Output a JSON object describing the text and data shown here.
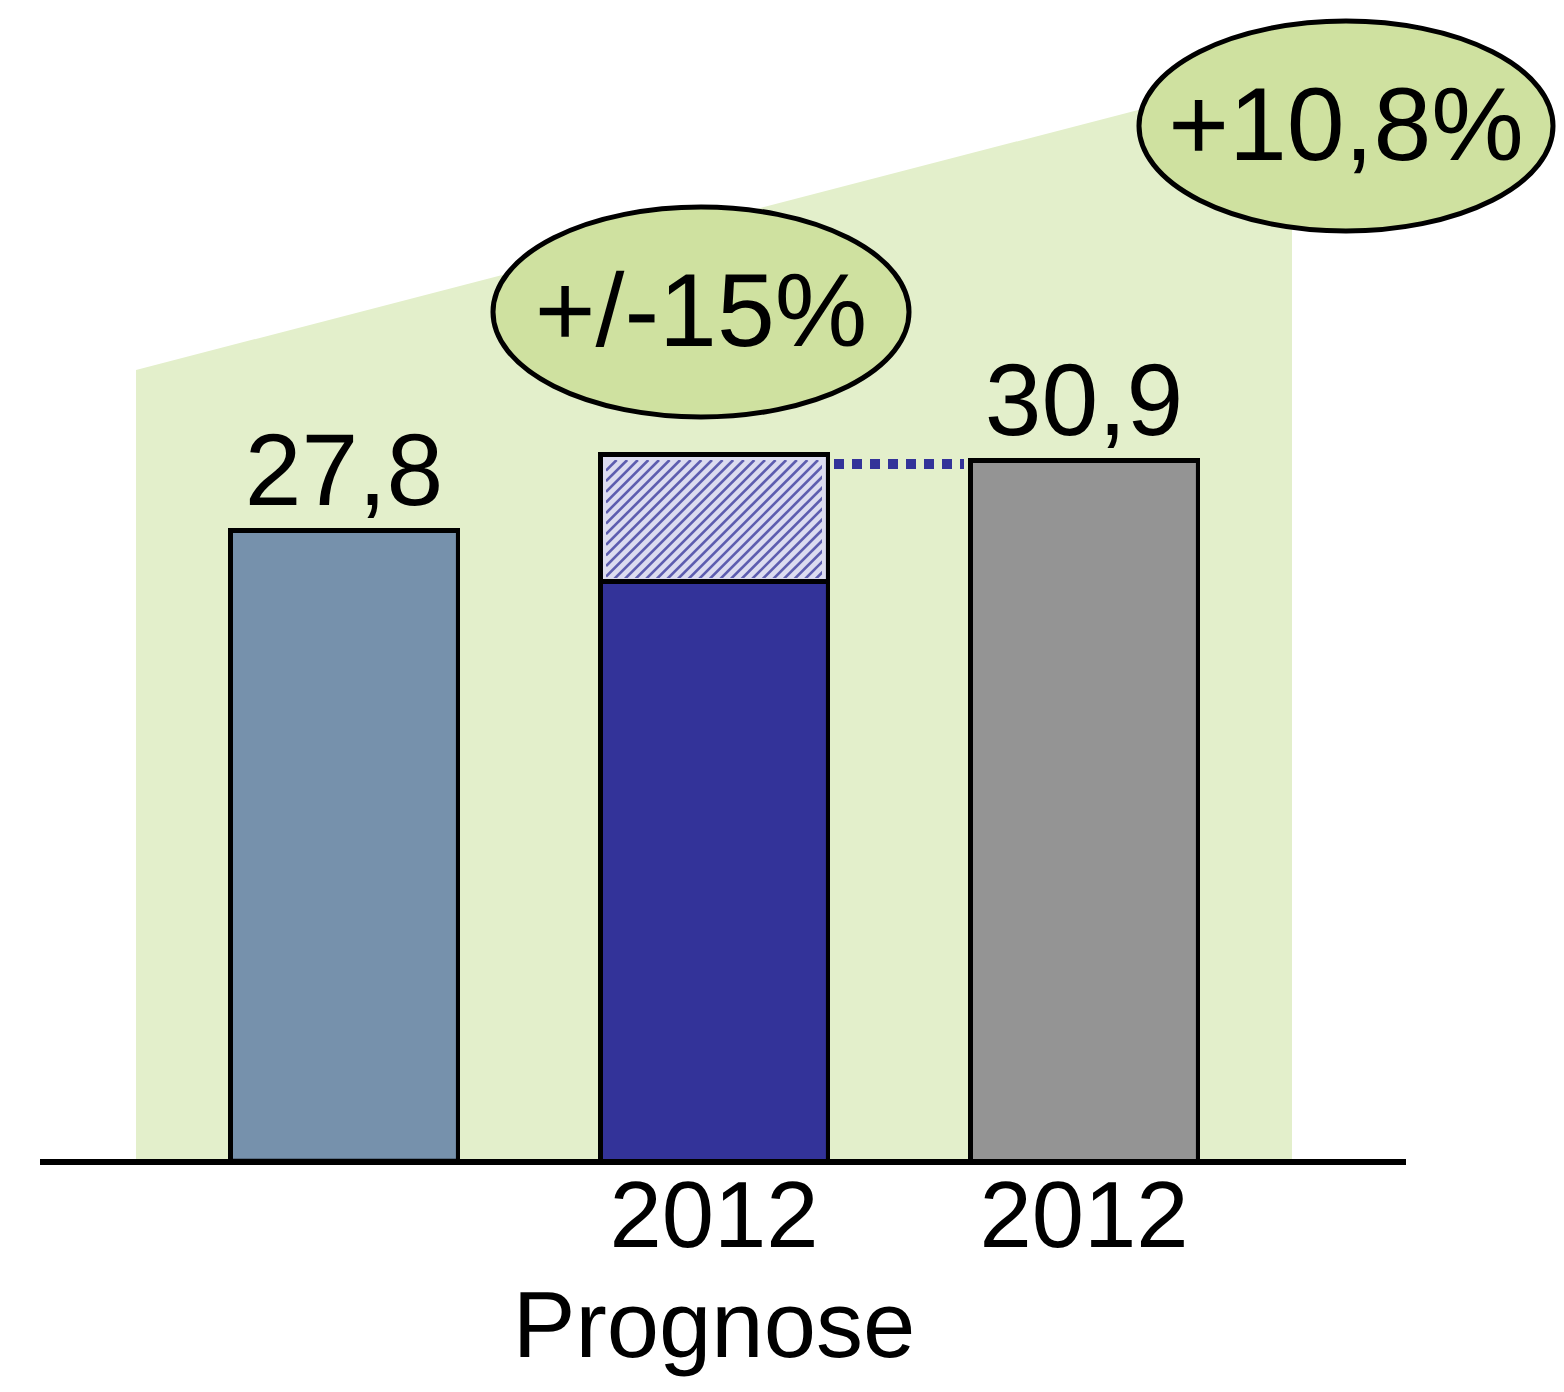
{
  "chart_data": {
    "type": "bar",
    "stacked": true,
    "categories": [
      null,
      "2012\nPrognose",
      "2012"
    ],
    "series": [
      {
        "colors": [
          "#7691ac",
          "#333399",
          "#949494"
        ],
        "values": [
          27.8,
          25.6,
          30.9
        ],
        "value_labels": [
          "27,8",
          null,
          "30,9"
        ]
      },
      {
        "color": "#dcdcf0",
        "values": [
          null,
          5.6,
          null
        ]
      }
    ],
    "tick_labels": "x",
    "annotations": [
      "+/-15%",
      "+10,8%"
    ],
    "grid": false,
    "legend": false
  }
}
